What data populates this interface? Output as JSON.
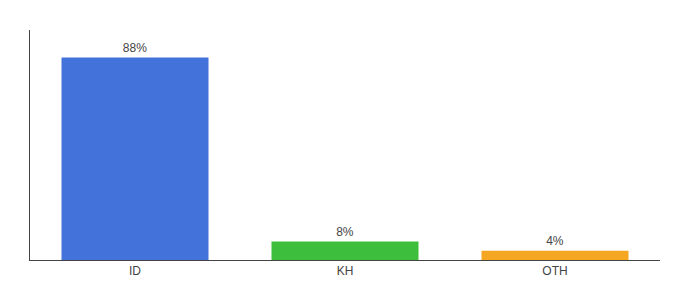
{
  "chart_data": {
    "type": "bar",
    "categories": [
      "ID",
      "KH",
      "OTH"
    ],
    "values": [
      88,
      8,
      4
    ],
    "value_labels": [
      "88%",
      "8%",
      "4%"
    ],
    "data_labels": true,
    "colors": [
      "#4472db",
      "#3dbf3d",
      "#f5a623"
    ],
    "ylim": [
      0,
      100
    ],
    "tick_labels": "x",
    "grid": false
  }
}
